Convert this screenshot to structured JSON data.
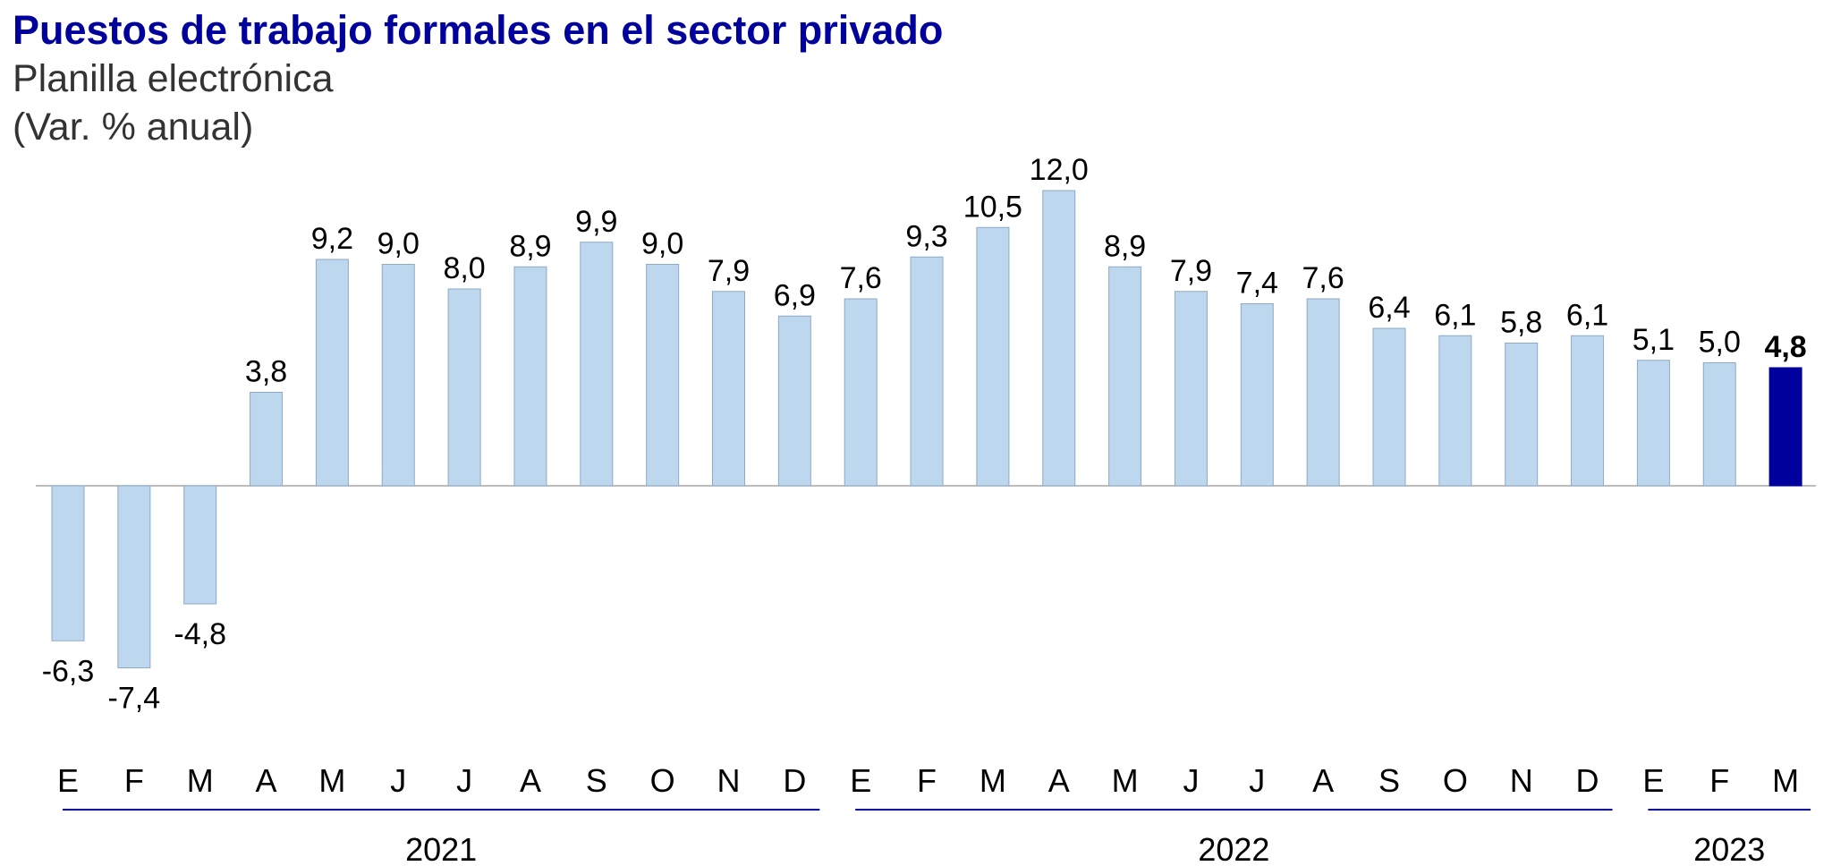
{
  "title": "Puestos de trabajo formales en el sector privado",
  "subtitle": "Planilla electrónica",
  "unit_label": "(Var. % anual)",
  "colors": {
    "bar": "#bdd7ee",
    "bar_border": "#8fa9c4",
    "highlight_bar": "#00009c",
    "title": "#00009c",
    "year_line": "#00009c",
    "axis": "#a6a6a6",
    "text": "#000000"
  },
  "chart_data": {
    "type": "bar",
    "categories": [
      "E",
      "F",
      "M",
      "A",
      "M",
      "J",
      "J",
      "A",
      "S",
      "O",
      "N",
      "D",
      "E",
      "F",
      "M",
      "A",
      "M",
      "J",
      "J",
      "A",
      "S",
      "O",
      "N",
      "D",
      "E",
      "F",
      "M"
    ],
    "values": [
      -6.3,
      -7.4,
      -4.8,
      3.8,
      9.2,
      9.0,
      8.0,
      8.9,
      9.9,
      9.0,
      7.9,
      6.9,
      7.6,
      9.3,
      10.5,
      12.0,
      8.9,
      7.9,
      7.4,
      7.6,
      6.4,
      6.1,
      5.8,
      6.1,
      5.1,
      5.0,
      4.8
    ],
    "data_labels": [
      "-6,3",
      "-7,4",
      "-4,8",
      "3,8",
      "9,2",
      "9,0",
      "8,0",
      "8,9",
      "9,9",
      "9,0",
      "7,9",
      "6,9",
      "7,6",
      "9,3",
      "10,5",
      "12,0",
      "8,9",
      "7,9",
      "7,4",
      "7,6",
      "6,4",
      "6,1",
      "5,8",
      "6,1",
      "5,1",
      "5,0",
      "4,8"
    ],
    "highlight_index": 26,
    "groups": [
      {
        "label": "2021",
        "start": 0,
        "end": 11
      },
      {
        "label": "2022",
        "start": 12,
        "end": 23
      },
      {
        "label": "2023",
        "start": 24,
        "end": 26
      }
    ],
    "title": "Puestos de trabajo formales en el sector privado",
    "subtitle": "Planilla electrónica",
    "ylabel": "(Var. % anual)",
    "ylim": [
      -7.4,
      12.0
    ],
    "grid": false,
    "legend": "none"
  }
}
